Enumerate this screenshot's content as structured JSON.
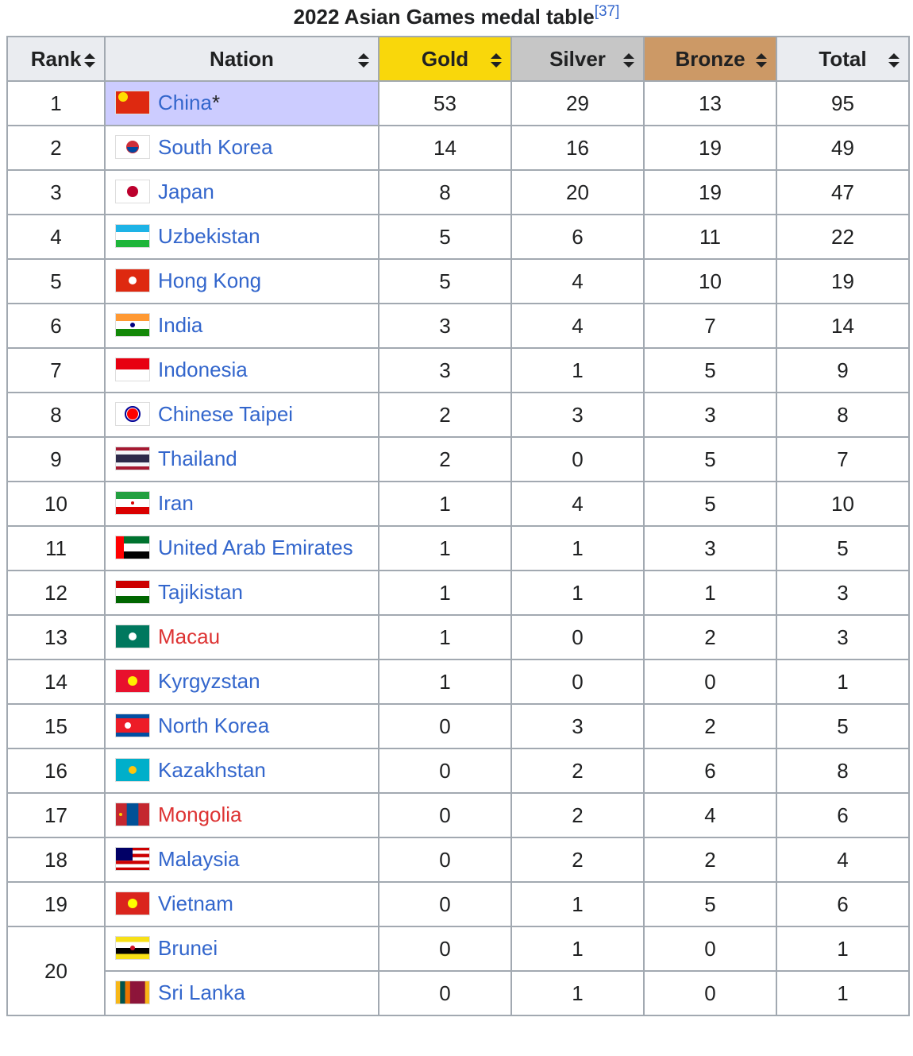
{
  "title": "2022 Asian Games medal table",
  "title_ref": "[37]",
  "table": {
    "columns": [
      "Rank",
      "Nation",
      "Gold",
      "Silver",
      "Bronze",
      "Total"
    ],
    "ranks": [
      {
        "rank": 1,
        "nations": [
          {
            "nation": "China",
            "note": "*",
            "host": true,
            "gold": 53,
            "silver": 29,
            "bronze": 13,
            "total": 95
          }
        ]
      },
      {
        "rank": 2,
        "nations": [
          {
            "nation": "South Korea",
            "gold": 14,
            "silver": 16,
            "bronze": 19,
            "total": 49
          }
        ]
      },
      {
        "rank": 3,
        "nations": [
          {
            "nation": "Japan",
            "gold": 8,
            "silver": 20,
            "bronze": 19,
            "total": 47
          }
        ]
      },
      {
        "rank": 4,
        "nations": [
          {
            "nation": "Uzbekistan",
            "gold": 5,
            "silver": 6,
            "bronze": 11,
            "total": 22
          }
        ]
      },
      {
        "rank": 5,
        "nations": [
          {
            "nation": "Hong Kong",
            "gold": 5,
            "silver": 4,
            "bronze": 10,
            "total": 19
          }
        ]
      },
      {
        "rank": 6,
        "nations": [
          {
            "nation": "India",
            "gold": 3,
            "silver": 4,
            "bronze": 7,
            "total": 14
          }
        ]
      },
      {
        "rank": 7,
        "nations": [
          {
            "nation": "Indonesia",
            "gold": 3,
            "silver": 1,
            "bronze": 5,
            "total": 9
          }
        ]
      },
      {
        "rank": 8,
        "nations": [
          {
            "nation": "Chinese Taipei",
            "gold": 2,
            "silver": 3,
            "bronze": 3,
            "total": 8
          }
        ]
      },
      {
        "rank": 9,
        "nations": [
          {
            "nation": "Thailand",
            "gold": 2,
            "silver": 0,
            "bronze": 5,
            "total": 7
          }
        ]
      },
      {
        "rank": 10,
        "nations": [
          {
            "nation": "Iran",
            "gold": 1,
            "silver": 4,
            "bronze": 5,
            "total": 10
          }
        ]
      },
      {
        "rank": 11,
        "nations": [
          {
            "nation": "United Arab Emirates",
            "gold": 1,
            "silver": 1,
            "bronze": 3,
            "total": 5
          }
        ]
      },
      {
        "rank": 12,
        "nations": [
          {
            "nation": "Tajikistan",
            "gold": 1,
            "silver": 1,
            "bronze": 1,
            "total": 3
          }
        ]
      },
      {
        "rank": 13,
        "nations": [
          {
            "nation": "Macau",
            "red_link": true,
            "gold": 1,
            "silver": 0,
            "bronze": 2,
            "total": 3
          }
        ]
      },
      {
        "rank": 14,
        "nations": [
          {
            "nation": "Kyrgyzstan",
            "gold": 1,
            "silver": 0,
            "bronze": 0,
            "total": 1
          }
        ]
      },
      {
        "rank": 15,
        "nations": [
          {
            "nation": "North Korea",
            "gold": 0,
            "silver": 3,
            "bronze": 2,
            "total": 5
          }
        ]
      },
      {
        "rank": 16,
        "nations": [
          {
            "nation": "Kazakhstan",
            "gold": 0,
            "silver": 2,
            "bronze": 6,
            "total": 8
          }
        ]
      },
      {
        "rank": 17,
        "nations": [
          {
            "nation": "Mongolia",
            "red_link": true,
            "gold": 0,
            "silver": 2,
            "bronze": 4,
            "total": 6
          }
        ]
      },
      {
        "rank": 18,
        "nations": [
          {
            "nation": "Malaysia",
            "gold": 0,
            "silver": 2,
            "bronze": 2,
            "total": 4
          }
        ]
      },
      {
        "rank": 19,
        "nations": [
          {
            "nation": "Vietnam",
            "gold": 0,
            "silver": 1,
            "bronze": 5,
            "total": 6
          }
        ]
      },
      {
        "rank": 20,
        "nations": [
          {
            "nation": "Brunei",
            "gold": 0,
            "silver": 1,
            "bronze": 0,
            "total": 1
          },
          {
            "nation": "Sri Lanka",
            "gold": 0,
            "silver": 1,
            "bronze": 0,
            "total": 1
          }
        ]
      }
    ]
  }
}
